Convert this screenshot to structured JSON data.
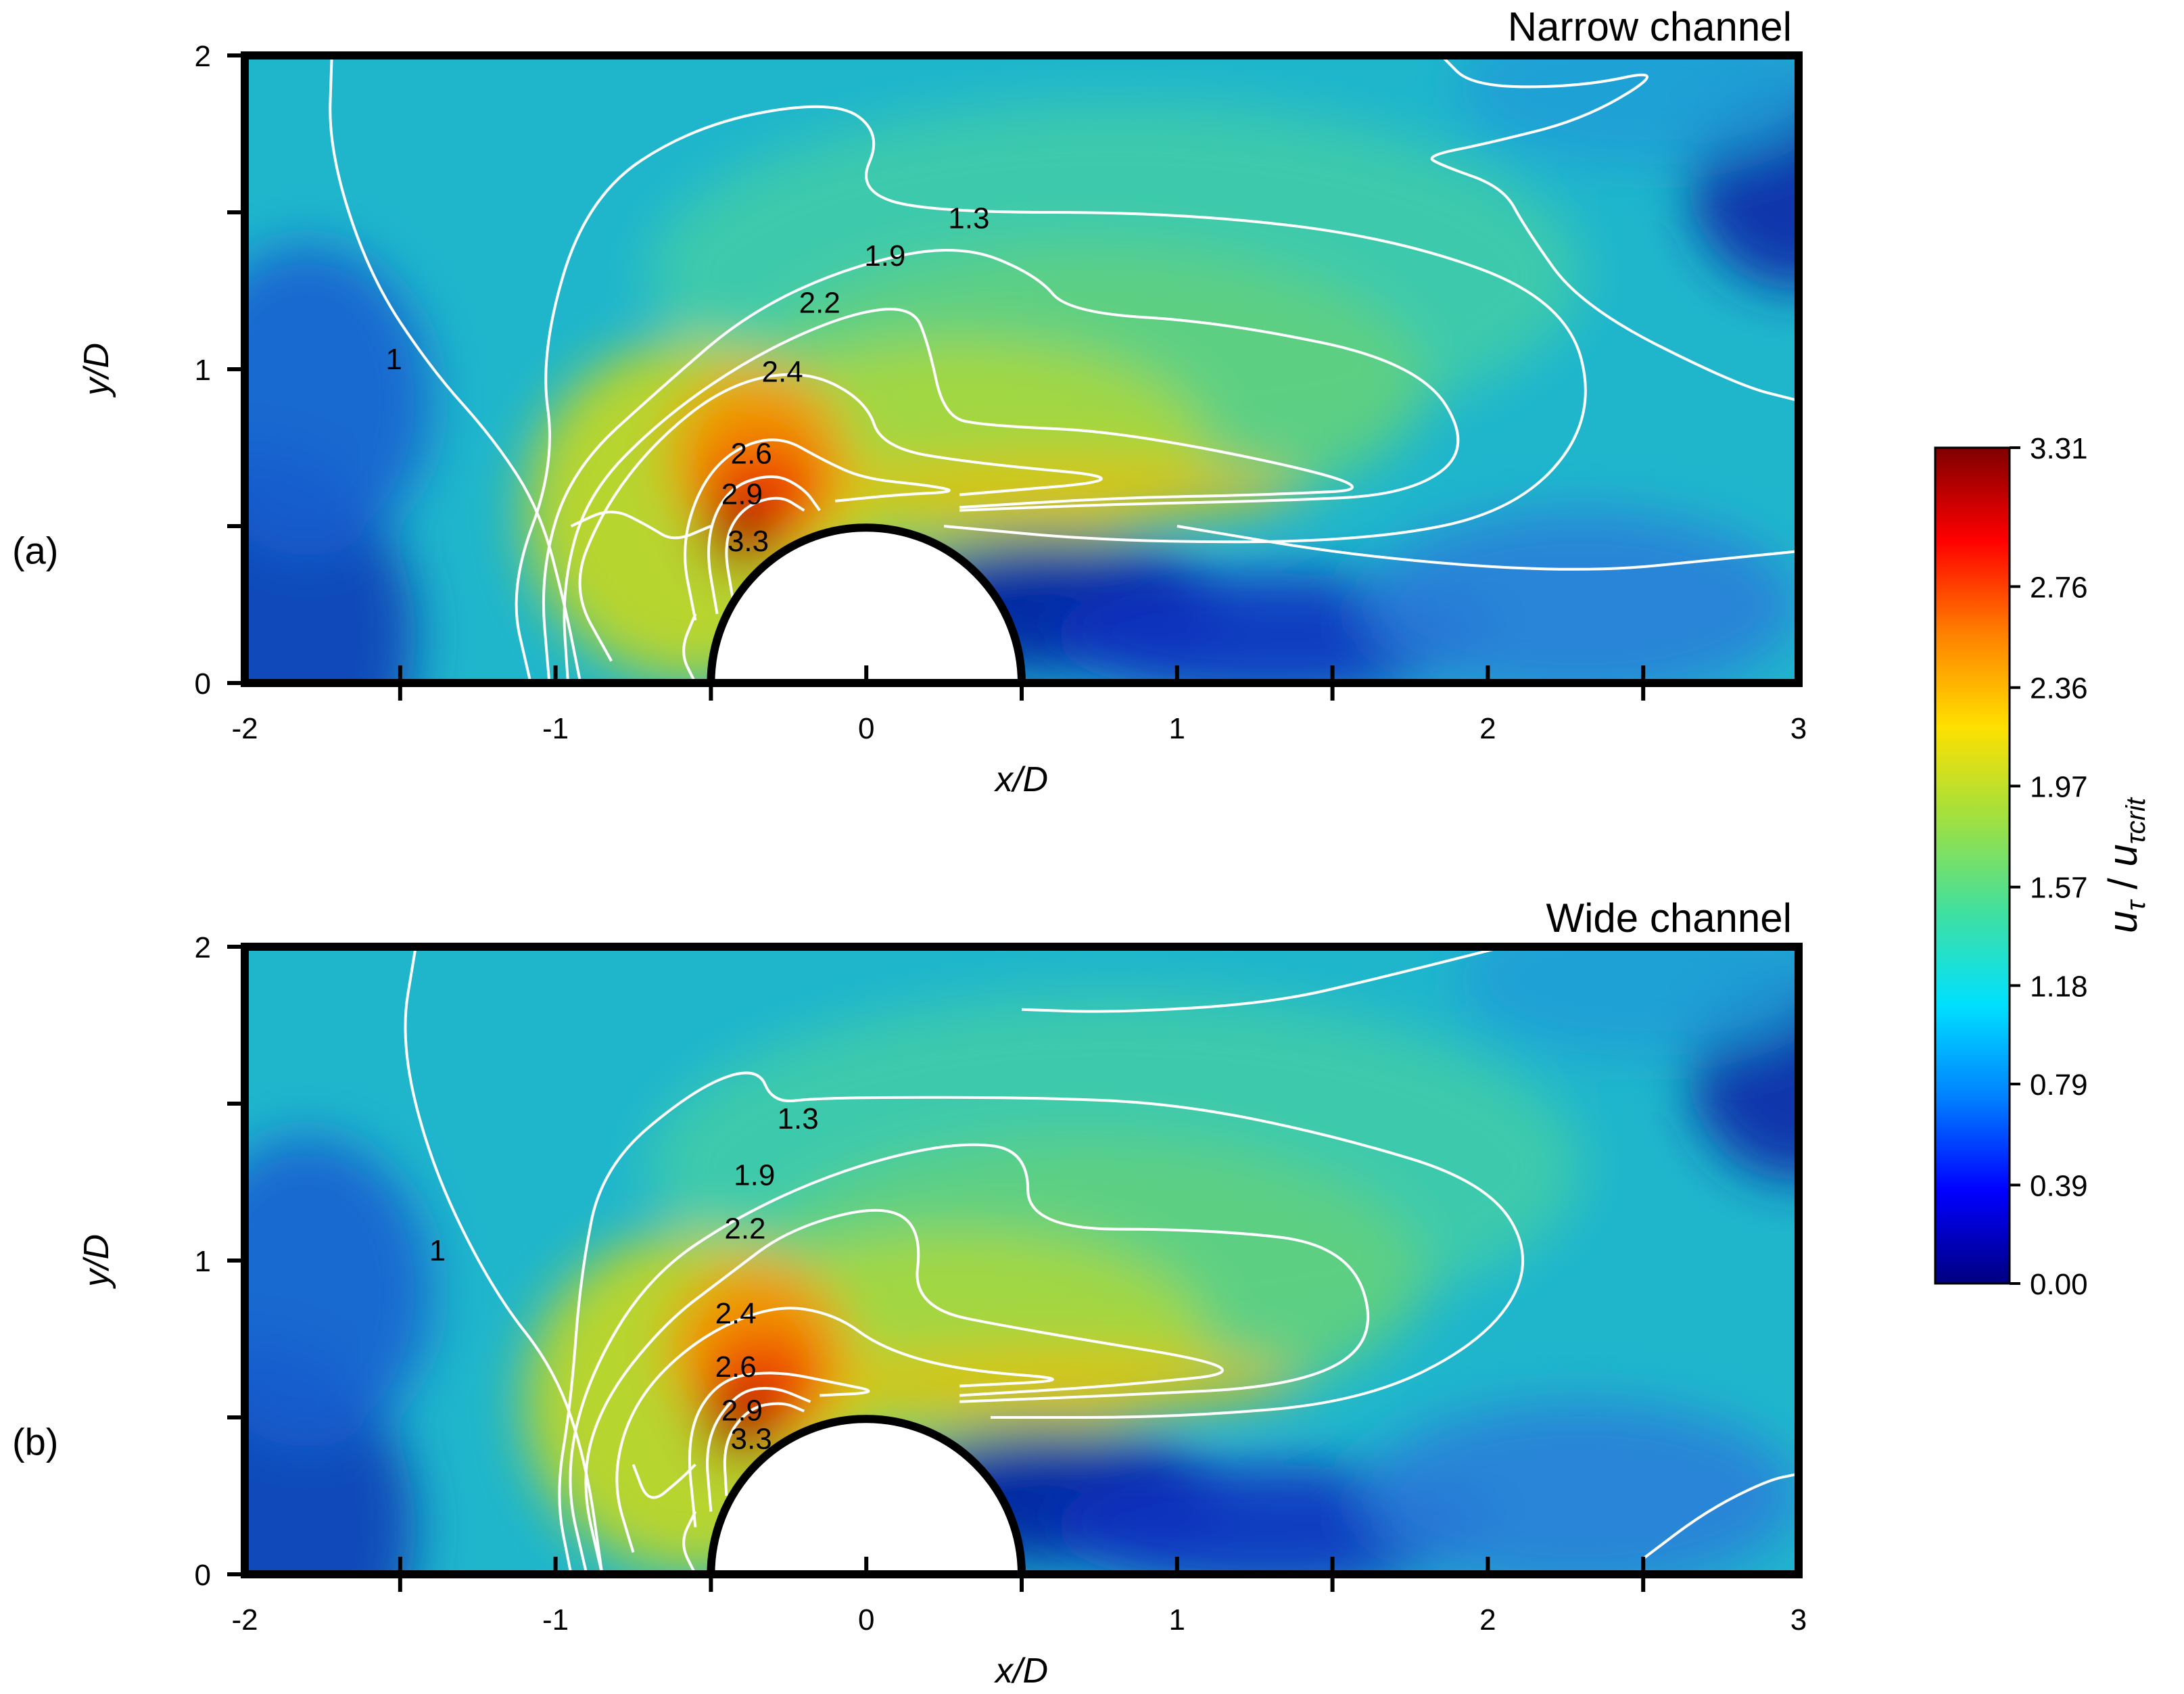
{
  "chart_data": [
    {
      "type": "heatmap",
      "panel_label": "(a)",
      "title": "Narrow channel",
      "xlabel": "x/D",
      "ylabel": "y/D",
      "xlim": [
        -2,
        3
      ],
      "ylim": [
        0,
        2
      ],
      "x_ticks": [
        -2,
        -1,
        0,
        1,
        2,
        3
      ],
      "y_ticks": [
        0,
        1,
        2
      ],
      "obstacle": {
        "shape": "half-cylinder",
        "center_x": 0,
        "center_y": 0,
        "radius": 0.5
      },
      "contour_labels": [
        {
          "text": "1.3",
          "x": 0.33,
          "y": 1.48
        },
        {
          "text": "1.9",
          "x": 0.06,
          "y": 1.36
        },
        {
          "text": "2.2",
          "x": -0.15,
          "y": 1.21
        },
        {
          "text": "2.4",
          "x": -0.27,
          "y": 0.99
        },
        {
          "text": "2.6",
          "x": -0.37,
          "y": 0.73
        },
        {
          "text": "2.9",
          "x": -0.4,
          "y": 0.6
        },
        {
          "text": "3.3",
          "x": -0.38,
          "y": 0.45
        },
        {
          "text": "1",
          "x": -1.52,
          "y": 1.03
        }
      ],
      "contours": [
        {
          "level": 1,
          "points": [
            [
              -1.72,
              2.0
            ],
            [
              -1.73,
              1.7
            ],
            [
              -1.6,
              1.3
            ],
            [
              -1.4,
              1.0
            ],
            [
              -1.2,
              0.78
            ],
            [
              -1.05,
              0.55
            ],
            [
              -0.97,
              0.25
            ],
            [
              -0.92,
              0.0
            ]
          ]
        },
        {
          "level": 1,
          "points": [
            [
              1.85,
              2.0
            ],
            [
              1.95,
              1.9
            ],
            [
              2.3,
              1.9
            ],
            [
              2.58,
              1.96
            ],
            [
              2.32,
              1.8
            ],
            [
              2.0,
              1.72
            ],
            [
              1.8,
              1.68
            ],
            [
              1.85,
              1.65
            ],
            [
              2.05,
              1.58
            ],
            [
              2.12,
              1.45
            ],
            [
              2.3,
              1.2
            ],
            [
              2.8,
              0.95
            ],
            [
              3.0,
              0.9
            ]
          ]
        },
        {
          "level": 1,
          "points": [
            [
              1.0,
              0.5
            ],
            [
              1.6,
              0.4
            ],
            [
              2.3,
              0.35
            ],
            [
              2.8,
              0.4
            ],
            [
              3.0,
              0.42
            ]
          ]
        },
        {
          "level": 1.3,
          "points": [
            [
              -1.08,
              0.0
            ],
            [
              -1.15,
              0.3
            ],
            [
              -1.0,
              0.7
            ],
            [
              -1.05,
              1.05
            ],
            [
              -0.9,
              1.55
            ],
            [
              -0.55,
              1.78
            ],
            [
              -0.1,
              1.86
            ],
            [
              0.05,
              1.75
            ],
            [
              -0.03,
              1.57
            ],
            [
              0.2,
              1.5
            ],
            [
              1.0,
              1.5
            ],
            [
              1.7,
              1.42
            ],
            [
              2.25,
              1.22
            ],
            [
              2.35,
              0.85
            ],
            [
              2.1,
              0.55
            ],
            [
              1.6,
              0.45
            ],
            [
              0.8,
              0.45
            ],
            [
              0.25,
              0.5
            ]
          ]
        },
        {
          "level": 1.9,
          "points": [
            [
              -1.02,
              0.0
            ],
            [
              -1.05,
              0.35
            ],
            [
              -0.95,
              0.68
            ],
            [
              -0.65,
              0.95
            ],
            [
              -0.38,
              1.18
            ],
            [
              -0.05,
              1.33
            ],
            [
              0.3,
              1.4
            ],
            [
              0.55,
              1.3
            ],
            [
              0.65,
              1.18
            ],
            [
              1.15,
              1.15
            ],
            [
              1.78,
              1.02
            ],
            [
              1.95,
              0.75
            ],
            [
              1.75,
              0.6
            ],
            [
              1.3,
              0.58
            ],
            [
              0.8,
              0.57
            ],
            [
              0.3,
              0.55
            ]
          ]
        },
        {
          "level": 2.2,
          "points": [
            [
              -0.96,
              0.0
            ],
            [
              -0.98,
              0.3
            ],
            [
              -0.9,
              0.6
            ],
            [
              -0.65,
              0.85
            ],
            [
              -0.35,
              1.05
            ],
            [
              -0.05,
              1.18
            ],
            [
              0.15,
              1.2
            ],
            [
              0.2,
              1.08
            ],
            [
              0.25,
              0.85
            ],
            [
              0.38,
              0.82
            ],
            [
              0.85,
              0.8
            ],
            [
              1.7,
              0.62
            ],
            [
              1.3,
              0.6
            ],
            [
              0.8,
              0.59
            ],
            [
              0.3,
              0.56
            ]
          ]
        },
        {
          "level": 2.4,
          "points": [
            [
              -0.82,
              0.07
            ],
            [
              -0.95,
              0.3
            ],
            [
              -0.85,
              0.55
            ],
            [
              -0.68,
              0.77
            ],
            [
              -0.45,
              0.95
            ],
            [
              -0.2,
              1.0
            ],
            [
              0.0,
              0.9
            ],
            [
              0.05,
              0.75
            ],
            [
              0.35,
              0.7
            ],
            [
              0.9,
              0.65
            ],
            [
              0.3,
              0.6
            ]
          ]
        },
        {
          "level": 2.4,
          "points": [
            [
              -0.95,
              0.5
            ],
            [
              -0.82,
              0.56
            ],
            [
              -0.7,
              0.5
            ],
            [
              -0.62,
              0.45
            ],
            [
              -0.5,
              0.5
            ]
          ]
        },
        {
          "level": 2.6,
          "points": [
            [
              -0.55,
              0.2
            ],
            [
              -0.6,
              0.45
            ],
            [
              -0.5,
              0.7
            ],
            [
              -0.3,
              0.8
            ],
            [
              -0.12,
              0.7
            ],
            [
              0.0,
              0.65
            ],
            [
              0.2,
              0.63
            ],
            [
              0.3,
              0.61
            ],
            [
              0.1,
              0.6
            ],
            [
              -0.1,
              0.58
            ]
          ]
        },
        {
          "level": 2.9,
          "points": [
            [
              -0.48,
              0.22
            ],
            [
              -0.52,
              0.45
            ],
            [
              -0.45,
              0.62
            ],
            [
              -0.3,
              0.67
            ],
            [
              -0.2,
              0.62
            ],
            [
              -0.15,
              0.55
            ]
          ]
        },
        {
          "level": 3.3,
          "points": [
            [
              -0.43,
              0.27
            ],
            [
              -0.46,
              0.45
            ],
            [
              -0.4,
              0.56
            ],
            [
              -0.28,
              0.6
            ],
            [
              -0.2,
              0.55
            ]
          ]
        },
        {
          "level": 0.8,
          "points": [
            [
              -0.55,
              0.0
            ],
            [
              -0.6,
              0.1
            ],
            [
              -0.55,
              0.22
            ]
          ]
        }
      ]
    },
    {
      "type": "heatmap",
      "panel_label": "(b)",
      "title": "Wide channel",
      "xlabel": "x/D",
      "ylabel": "y/D",
      "xlim": [
        -2,
        3
      ],
      "ylim": [
        0,
        2
      ],
      "x_ticks": [
        -2,
        -1,
        0,
        1,
        2,
        3
      ],
      "y_ticks": [
        0,
        1,
        2
      ],
      "obstacle": {
        "shape": "half-cylinder",
        "center_x": 0,
        "center_y": 0,
        "radius": 0.5
      },
      "contour_labels": [
        {
          "text": "1.3",
          "x": -0.22,
          "y": 1.45
        },
        {
          "text": "1.9",
          "x": -0.36,
          "y": 1.27
        },
        {
          "text": "2.2",
          "x": -0.39,
          "y": 1.1
        },
        {
          "text": "2.4",
          "x": -0.42,
          "y": 0.83
        },
        {
          "text": "2.6",
          "x": -0.42,
          "y": 0.66
        },
        {
          "text": "2.9",
          "x": -0.4,
          "y": 0.52
        },
        {
          "text": "3.3",
          "x": -0.37,
          "y": 0.43
        },
        {
          "text": "1",
          "x": -1.38,
          "y": 1.03
        }
      ],
      "contours": [
        {
          "level": 1,
          "points": [
            [
              -1.45,
              2.0
            ],
            [
              -1.5,
              1.7
            ],
            [
              -1.4,
              1.3
            ],
            [
              -1.2,
              0.9
            ],
            [
              -1.0,
              0.65
            ],
            [
              -0.9,
              0.35
            ],
            [
              -0.85,
              0.0
            ]
          ]
        },
        {
          "level": 1,
          "points": [
            [
              0.5,
              1.8
            ],
            [
              0.8,
              1.79
            ],
            [
              1.3,
              1.82
            ],
            [
              1.65,
              1.9
            ],
            [
              2.05,
              2.0
            ]
          ]
        },
        {
          "level": 1,
          "points": [
            [
              2.5,
              0.05
            ],
            [
              2.7,
              0.2
            ],
            [
              2.9,
              0.3
            ],
            [
              3.0,
              0.32
            ]
          ]
        },
        {
          "level": 1.3,
          "points": [
            [
              -0.95,
              0.0
            ],
            [
              -1.0,
              0.25
            ],
            [
              -0.95,
              0.55
            ],
            [
              -0.92,
              0.95
            ],
            [
              -0.85,
              1.3
            ],
            [
              -0.55,
              1.55
            ],
            [
              -0.35,
              1.62
            ],
            [
              -0.3,
              1.5
            ],
            [
              -0.15,
              1.52
            ],
            [
              0.55,
              1.52
            ],
            [
              1.0,
              1.5
            ],
            [
              1.5,
              1.4
            ],
            [
              2.0,
              1.25
            ],
            [
              2.15,
              1.0
            ],
            [
              2.0,
              0.75
            ],
            [
              1.6,
              0.55
            ],
            [
              1.0,
              0.5
            ],
            [
              0.4,
              0.5
            ]
          ]
        },
        {
          "level": 1.9,
          "points": [
            [
              -0.9,
              0.0
            ],
            [
              -0.97,
              0.3
            ],
            [
              -0.9,
              0.62
            ],
            [
              -0.7,
              0.95
            ],
            [
              -0.4,
              1.15
            ],
            [
              -0.05,
              1.3
            ],
            [
              0.3,
              1.38
            ],
            [
              0.52,
              1.35
            ],
            [
              0.52,
              1.1
            ],
            [
              1.1,
              1.1
            ],
            [
              1.55,
              1.05
            ],
            [
              1.65,
              0.75
            ],
            [
              1.4,
              0.6
            ],
            [
              0.8,
              0.57
            ],
            [
              0.3,
              0.55
            ]
          ]
        },
        {
          "level": 2.2,
          "points": [
            [
              -0.85,
              0.0
            ],
            [
              -0.92,
              0.3
            ],
            [
              -0.85,
              0.55
            ],
            [
              -0.65,
              0.8
            ],
            [
              -0.45,
              0.95
            ],
            [
              -0.25,
              1.1
            ],
            [
              0.05,
              1.18
            ],
            [
              0.18,
              1.1
            ],
            [
              0.15,
              0.85
            ],
            [
              0.5,
              0.78
            ],
            [
              1.3,
              0.65
            ],
            [
              0.8,
              0.6
            ],
            [
              0.3,
              0.57
            ]
          ]
        },
        {
          "level": 2.4,
          "points": [
            [
              -0.75,
              0.07
            ],
            [
              -0.82,
              0.3
            ],
            [
              -0.75,
              0.55
            ],
            [
              -0.55,
              0.75
            ],
            [
              -0.3,
              0.86
            ],
            [
              -0.1,
              0.83
            ],
            [
              0.05,
              0.72
            ],
            [
              0.3,
              0.65
            ],
            [
              0.7,
              0.62
            ],
            [
              0.3,
              0.6
            ]
          ]
        },
        {
          "level": 2.4,
          "points": [
            [
              -0.75,
              0.35
            ],
            [
              -0.7,
              0.22
            ],
            [
              -0.6,
              0.3
            ],
            [
              -0.55,
              0.35
            ]
          ]
        },
        {
          "level": 2.6,
          "points": [
            [
              -0.55,
              0.15
            ],
            [
              -0.58,
              0.45
            ],
            [
              -0.48,
              0.62
            ],
            [
              -0.3,
              0.65
            ],
            [
              -0.1,
              0.61
            ],
            [
              0.05,
              0.58
            ],
            [
              -0.15,
              0.57
            ]
          ]
        },
        {
          "level": 2.9,
          "points": [
            [
              -0.5,
              0.2
            ],
            [
              -0.52,
              0.43
            ],
            [
              -0.42,
              0.58
            ],
            [
              -0.3,
              0.6
            ],
            [
              -0.18,
              0.55
            ]
          ]
        },
        {
          "level": 3.3,
          "points": [
            [
              -0.45,
              0.25
            ],
            [
              -0.46,
              0.42
            ],
            [
              -0.38,
              0.53
            ],
            [
              -0.27,
              0.55
            ],
            [
              -0.2,
              0.52
            ]
          ]
        },
        {
          "level": 0.8,
          "points": [
            [
              -0.55,
              0.0
            ],
            [
              -0.6,
              0.1
            ],
            [
              -0.55,
              0.2
            ]
          ]
        }
      ]
    }
  ],
  "colorbar": {
    "label": "uτ/uτcrit",
    "label_parts": {
      "u1": "u",
      "sub1": "τ",
      "u2": "u",
      "sub2": "τcrit"
    },
    "min": 0.0,
    "max": 3.31,
    "ticks": [
      "3.31",
      "2.76",
      "2.36",
      "1.97",
      "1.57",
      "1.18",
      "0.79",
      "0.39",
      "0.00"
    ],
    "colormap": [
      "#00007f",
      "#0000ff",
      "#0080ff",
      "#00e0ff",
      "#40e0a0",
      "#a0e040",
      "#ffe000",
      "#ff8000",
      "#ff0000",
      "#7f0000"
    ]
  },
  "colors": {
    "frame": "#000000",
    "contour": "#ffffff",
    "obstacle": "#ffffff"
  }
}
